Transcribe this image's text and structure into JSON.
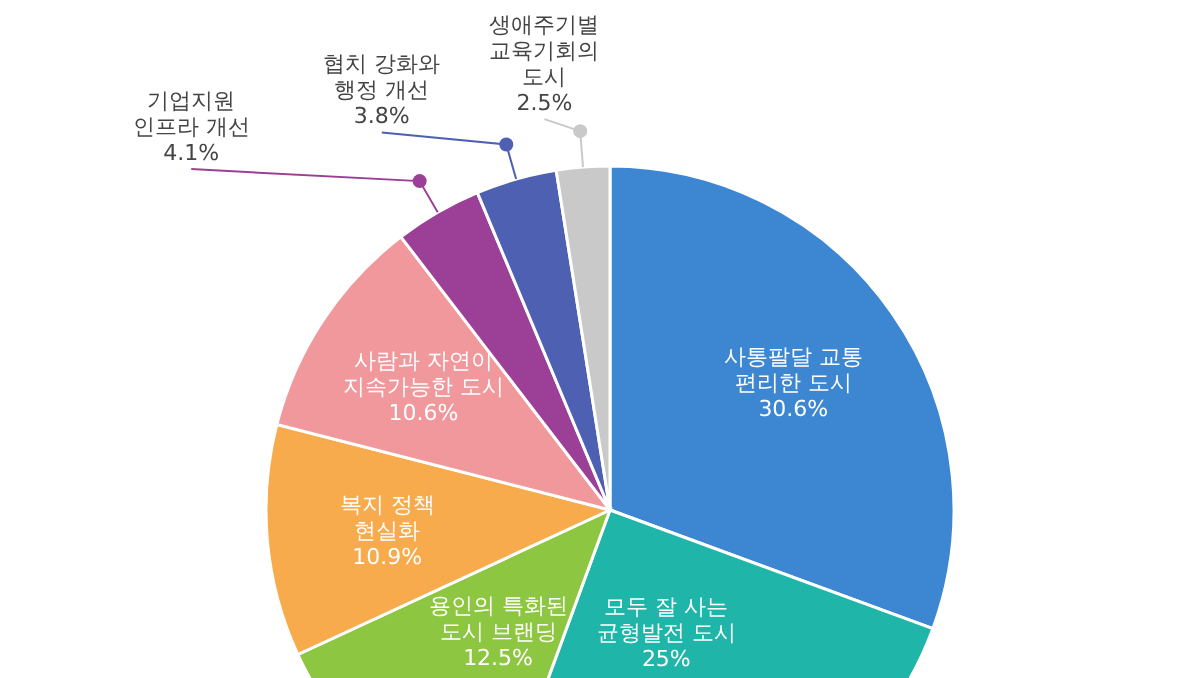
{
  "chart_data": {
    "type": "pie",
    "categories": [
      "사통팔달 교통 편리한 도시",
      "모두 잘 사는 균형발전 도시",
      "용인의 특화된 도시 브랜딩",
      "복지 정책 현실화",
      "사람과 자연이 지속가능한 도시",
      "기업지원 인프라 개선",
      "협치 강화와 행정 개선",
      "생애주기별 교육기회의 도시"
    ],
    "values": [
      30.6,
      25,
      12.5,
      10.9,
      10.6,
      4.1,
      3.8,
      2.5
    ],
    "value_labels": [
      "30.6%",
      "25%",
      "12.5%",
      "10.9%",
      "10.6%",
      "4.1%",
      "3.8%",
      "2.5%"
    ],
    "colors": [
      "#3d87d2",
      "#1fb5a9",
      "#8dc640",
      "#f8ab4c",
      "#f1989c",
      "#9c3f97",
      "#4e60b2",
      "#c9c9c9"
    ]
  }
}
